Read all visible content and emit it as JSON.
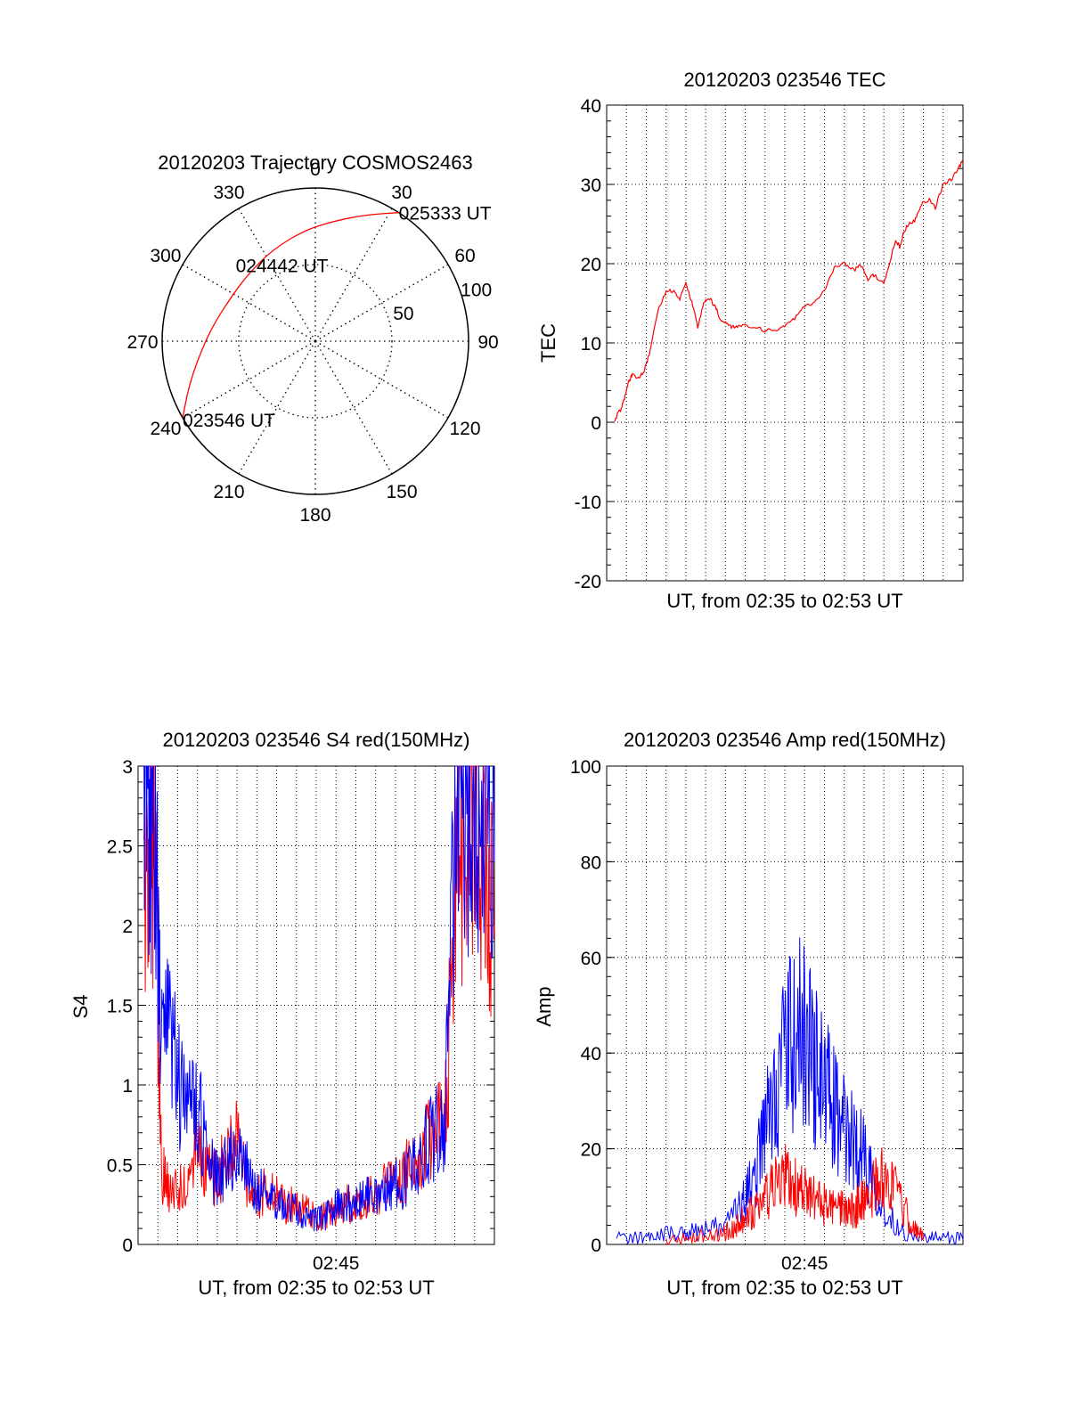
{
  "chart_data": [
    {
      "id": "polar",
      "type": "polar-trajectory",
      "title": "20120203 Trajectory COSMOS2463",
      "azimuth_labels": [
        "0",
        "30",
        "60",
        "90",
        "120",
        "150",
        "180",
        "210",
        "240",
        "270",
        "300",
        "330"
      ],
      "elevation_ring_labels": [
        "50",
        "100"
      ],
      "elevation_rings": [
        50,
        100
      ],
      "trajectory": {
        "color": "#ff0000",
        "points": [
          {
            "az": 240,
            "r": 100
          },
          {
            "az": 250,
            "r": 88
          },
          {
            "az": 262,
            "r": 77
          },
          {
            "az": 278,
            "r": 68
          },
          {
            "az": 298,
            "r": 62
          },
          {
            "az": 315,
            "r": 62
          },
          {
            "az": 335,
            "r": 66
          },
          {
            "az": 355,
            "r": 73
          },
          {
            "az": 10,
            "r": 80
          },
          {
            "az": 22,
            "r": 89
          },
          {
            "az": 33,
            "r": 100
          }
        ]
      },
      "annotations": [
        {
          "text": "025333 UT",
          "az": 33,
          "r": 100
        },
        {
          "text": "024442 UT",
          "az": 315,
          "r": 62
        },
        {
          "text": "023546 UT",
          "az": 240,
          "r": 100
        }
      ]
    },
    {
      "id": "tec",
      "type": "line",
      "title": "20120203 023546 TEC",
      "xlabel": "UT, from 02:35 to 02:53 UT",
      "ylabel": "TEC",
      "ylim": [
        -20,
        40
      ],
      "yticks": [
        "40",
        "30",
        "20",
        "10",
        "0",
        "-10",
        "-20"
      ],
      "xlim": [
        0,
        18
      ],
      "x_tick_labels": [],
      "grid": true,
      "series": [
        {
          "color": "#ff0000",
          "x": [
            0.4,
            0.55,
            0.7,
            0.9,
            1.1,
            1.3,
            1.6,
            1.9,
            2.2,
            2.6,
            3.0,
            3.4,
            3.7,
            4.0,
            4.3,
            4.6,
            4.9,
            5.2,
            5.5,
            5.7,
            6.0,
            6.3,
            6.6,
            7.0,
            7.5,
            8.0,
            8.5,
            9.0,
            9.5,
            10.0,
            10.5,
            11.0,
            11.5,
            12.0,
            12.5,
            12.8,
            13.2,
            13.5,
            14.0,
            14.3,
            14.6,
            14.8,
            15.0,
            15.3,
            15.6,
            15.9,
            16.3,
            16.6,
            17.0,
            17.4,
            17.8,
            18.0
          ],
          "y": [
            0.0,
            1.0,
            1.5,
            3.0,
            5.0,
            6.0,
            5.5,
            6.5,
            9.0,
            14.0,
            16.5,
            16.5,
            15.5,
            17.5,
            15.0,
            12.0,
            15.0,
            15.5,
            14.5,
            13.0,
            12.5,
            12.0,
            12.0,
            12.0,
            12.0,
            11.5,
            11.5,
            12.0,
            13.0,
            14.5,
            15.0,
            16.5,
            19.5,
            20.0,
            19.0,
            20.0,
            18.0,
            18.5,
            17.5,
            20.0,
            23.0,
            22.0,
            24.0,
            25.0,
            25.5,
            27.5,
            28.0,
            27.0,
            30.0,
            30.5,
            32.0,
            33.0
          ]
        }
      ]
    },
    {
      "id": "s4",
      "type": "line",
      "title": "20120203 023546 S4 red(150MHz)",
      "xlabel": "UT, from 02:35 to 02:53 UT",
      "ylabel": "S4",
      "ylim": [
        0,
        3
      ],
      "yticks": [
        "0",
        "0.5",
        "1",
        "1.5",
        "2",
        "2.5",
        "3"
      ],
      "xlim": [
        0,
        18
      ],
      "x_tick_labels": [
        {
          "x": 10,
          "label": "02:45"
        }
      ],
      "grid": true,
      "series": [
        {
          "color": "#ff0000",
          "x": [
            0.3,
            0.6,
            0.9,
            1.2,
            1.5,
            2.0,
            2.5,
            3.0,
            3.5,
            4.0,
            4.5,
            5.0,
            5.5,
            6.0,
            6.5,
            7.0,
            7.5,
            8.0,
            8.5,
            9.0,
            9.5,
            10.0,
            10.5,
            11.0,
            11.5,
            12.0,
            12.5,
            13.0,
            13.5,
            14.0,
            14.5,
            15.0,
            15.5,
            16.0,
            16.5,
            17.0,
            17.5,
            18.0
          ],
          "y": [
            2.2,
            2.5,
            2.0,
            0.4,
            0.3,
            0.3,
            0.3,
            0.55,
            0.4,
            0.35,
            0.5,
            0.55,
            0.35,
            0.25,
            0.3,
            0.25,
            0.2,
            0.22,
            0.18,
            0.15,
            0.15,
            0.2,
            0.22,
            0.2,
            0.25,
            0.3,
            0.3,
            0.35,
            0.4,
            0.45,
            0.55,
            0.65,
            0.7,
            1.8,
            2.5,
            2.4,
            2.3,
            2.0
          ]
        },
        {
          "color": "#0000ff",
          "x": [
            0.3,
            0.6,
            0.9,
            1.2,
            1.5,
            2.0,
            2.5,
            3.0,
            3.5,
            4.0,
            4.5,
            5.0,
            5.5,
            6.0,
            6.5,
            7.0,
            7.5,
            8.0,
            8.5,
            9.0,
            9.5,
            10.0,
            10.5,
            11.0,
            11.5,
            12.0,
            12.5,
            13.0,
            13.5,
            14.0,
            14.5,
            15.0,
            15.5,
            16.0,
            16.5,
            17.0,
            17.5,
            18.0
          ],
          "y": [
            2.8,
            2.5,
            2.2,
            1.0,
            1.2,
            0.9,
            0.75,
            0.8,
            0.45,
            0.35,
            0.45,
            0.55,
            0.4,
            0.3,
            0.25,
            0.22,
            0.2,
            0.18,
            0.16,
            0.14,
            0.15,
            0.2,
            0.22,
            0.22,
            0.25,
            0.25,
            0.28,
            0.32,
            0.35,
            0.45,
            0.55,
            0.6,
            0.65,
            2.3,
            2.6,
            2.7,
            2.6,
            2.4
          ]
        }
      ]
    },
    {
      "id": "amp",
      "type": "line",
      "title": "20120203 023546 Amp red(150MHz)",
      "xlabel": "UT, from 02:35 to 02:53 UT",
      "ylabel": "Amp",
      "ylim": [
        0,
        100
      ],
      "yticks": [
        "0",
        "20",
        "40",
        "60",
        "80",
        "100"
      ],
      "xlim": [
        0,
        18
      ],
      "x_tick_labels": [
        {
          "x": 10,
          "label": "02:45"
        }
      ],
      "grid": true,
      "series": [
        {
          "color": "#0000ff",
          "x": [
            0.5,
            1.5,
            2.5,
            3.5,
            4.5,
            5.5,
            6.5,
            7.0,
            7.5,
            8.0,
            8.5,
            9.0,
            9.5,
            10.0,
            10.5,
            11.0,
            11.5,
            12.0,
            12.5,
            13.0,
            13.5,
            14.0,
            15.0,
            16.0,
            17.0,
            18.0
          ],
          "y": [
            1,
            1,
            1.5,
            2,
            2,
            3,
            5,
            8,
            12,
            20,
            28,
            34,
            36,
            38,
            32,
            28,
            24,
            20,
            18,
            16,
            12,
            6,
            2,
            1,
            1,
            1
          ]
        },
        {
          "color": "#ff0000",
          "x": [
            3.0,
            4.0,
            5.0,
            6.0,
            6.5,
            7.0,
            7.5,
            8.0,
            8.5,
            9.0,
            9.5,
            10.0,
            10.5,
            11.0,
            11.5,
            12.0,
            12.5,
            13.0,
            13.5,
            14.0,
            14.5,
            15.0,
            15.5,
            16.0
          ],
          "y": [
            0.5,
            1,
            1.5,
            2,
            3,
            5,
            6,
            8,
            10,
            12,
            10,
            9,
            8,
            7,
            6,
            6,
            6,
            8,
            10,
            12,
            10,
            6,
            3,
            1
          ]
        }
      ]
    }
  ]
}
